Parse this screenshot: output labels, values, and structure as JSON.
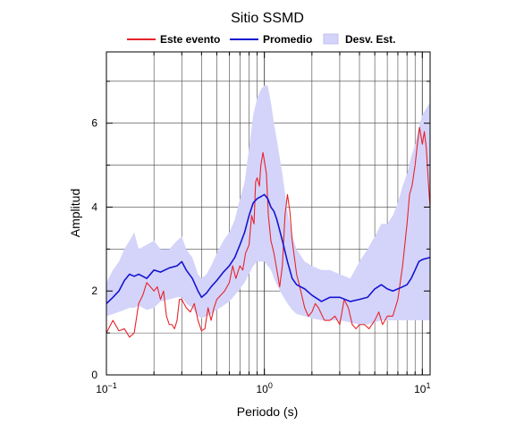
{
  "chart_data": {
    "type": "line",
    "title": "Sitio SSMD",
    "xlabel": "Periodo (s)",
    "ylabel": "Amplitud",
    "xscale": "log",
    "xlim": [
      0.1,
      11.2
    ],
    "ylim": [
      0,
      7.7
    ],
    "grid": true,
    "legend_position": "top-center",
    "xticks": [
      {
        "value": 0.1,
        "base": "10",
        "exp": "−1"
      },
      {
        "value": 1,
        "label": "10",
        "sup": "0"
      },
      {
        "value": 10,
        "label": "10",
        "sup": "1"
      }
    ],
    "yticks": [
      0,
      2,
      4,
      6
    ],
    "legend": [
      {
        "key": "event",
        "label": "Este evento"
      },
      {
        "key": "mean",
        "label": "Promedio"
      },
      {
        "key": "band",
        "label": "Desv. Est."
      }
    ],
    "colors": {
      "event": "#e8232a",
      "mean": "#1414d2",
      "band": "#d4d4fa",
      "band_edge": "#b8b8ee",
      "grid": "#444444"
    },
    "series": [
      {
        "key": "event",
        "name": "Este evento",
        "x": [
          0.1,
          0.11,
          0.12,
          0.13,
          0.14,
          0.15,
          0.16,
          0.17,
          0.18,
          0.19,
          0.2,
          0.21,
          0.22,
          0.23,
          0.24,
          0.25,
          0.26,
          0.27,
          0.28,
          0.29,
          0.3,
          0.32,
          0.34,
          0.36,
          0.38,
          0.4,
          0.42,
          0.44,
          0.46,
          0.48,
          0.5,
          0.53,
          0.56,
          0.6,
          0.63,
          0.66,
          0.7,
          0.73,
          0.76,
          0.8,
          0.83,
          0.86,
          0.88,
          0.9,
          0.93,
          0.95,
          0.98,
          1.0,
          1.03,
          1.06,
          1.1,
          1.15,
          1.2,
          1.25,
          1.3,
          1.35,
          1.4,
          1.45,
          1.5,
          1.6,
          1.7,
          1.8,
          1.9,
          2.0,
          2.1,
          2.2,
          2.4,
          2.6,
          2.8,
          3.0,
          3.2,
          3.4,
          3.6,
          3.8,
          4.0,
          4.3,
          4.6,
          5.0,
          5.3,
          5.6,
          6.0,
          6.5,
          7.0,
          7.5,
          8.0,
          8.3,
          8.6,
          9.0,
          9.3,
          9.6,
          10.0,
          10.3,
          10.6,
          11.0,
          11.2
        ],
        "y": [
          1.0,
          1.3,
          1.05,
          1.1,
          0.9,
          1.0,
          1.7,
          1.9,
          2.2,
          2.1,
          2.0,
          2.1,
          1.8,
          2.0,
          1.4,
          1.2,
          1.2,
          1.1,
          1.3,
          1.8,
          1.8,
          1.6,
          1.5,
          1.7,
          1.3,
          1.05,
          1.1,
          1.6,
          1.3,
          1.6,
          1.8,
          1.9,
          2.0,
          2.2,
          2.6,
          2.3,
          2.6,
          2.5,
          2.9,
          3.1,
          3.8,
          3.6,
          4.6,
          4.7,
          4.5,
          5.0,
          5.3,
          5.1,
          4.8,
          3.8,
          3.2,
          2.9,
          2.5,
          2.1,
          2.6,
          3.8,
          4.3,
          3.9,
          3.2,
          2.4,
          2.0,
          1.6,
          1.4,
          1.5,
          1.7,
          1.6,
          1.3,
          1.3,
          1.4,
          1.2,
          1.8,
          1.6,
          1.2,
          1.1,
          1.2,
          1.2,
          1.1,
          1.3,
          1.5,
          1.2,
          1.4,
          1.4,
          1.8,
          2.6,
          3.6,
          4.3,
          4.5,
          5.0,
          5.5,
          5.9,
          5.5,
          5.8,
          5.4,
          4.4,
          4.0
        ]
      },
      {
        "key": "mean",
        "name": "Promedio",
        "x": [
          0.1,
          0.11,
          0.12,
          0.13,
          0.14,
          0.15,
          0.16,
          0.17,
          0.18,
          0.2,
          0.22,
          0.25,
          0.28,
          0.3,
          0.32,
          0.35,
          0.38,
          0.4,
          0.43,
          0.46,
          0.5,
          0.55,
          0.6,
          0.65,
          0.7,
          0.75,
          0.8,
          0.85,
          0.9,
          0.95,
          1.0,
          1.05,
          1.1,
          1.15,
          1.2,
          1.3,
          1.4,
          1.5,
          1.6,
          1.8,
          2.0,
          2.3,
          2.6,
          3.0,
          3.5,
          4.0,
          4.5,
          5.0,
          5.5,
          6.0,
          6.5,
          7.0,
          7.5,
          8.0,
          8.5,
          9.0,
          9.5,
          10.0,
          11.2
        ],
        "y": [
          1.7,
          1.85,
          2.0,
          2.25,
          2.4,
          2.35,
          2.4,
          2.35,
          2.3,
          2.5,
          2.45,
          2.55,
          2.6,
          2.7,
          2.5,
          2.3,
          2.0,
          1.85,
          1.95,
          2.1,
          2.25,
          2.45,
          2.6,
          2.8,
          3.1,
          3.4,
          3.8,
          4.1,
          4.2,
          4.25,
          4.3,
          4.2,
          4.0,
          3.9,
          3.7,
          3.2,
          2.7,
          2.3,
          2.15,
          2.05,
          1.9,
          1.75,
          1.85,
          1.85,
          1.75,
          1.8,
          1.85,
          2.05,
          2.15,
          2.05,
          2.0,
          2.05,
          2.1,
          2.15,
          2.3,
          2.5,
          2.7,
          2.75,
          2.8
        ]
      },
      {
        "key": "band",
        "name": "Desv. Est.",
        "x": [
          0.1,
          0.11,
          0.12,
          0.13,
          0.14,
          0.15,
          0.16,
          0.18,
          0.2,
          0.22,
          0.25,
          0.28,
          0.3,
          0.32,
          0.35,
          0.38,
          0.4,
          0.43,
          0.46,
          0.5,
          0.55,
          0.6,
          0.65,
          0.7,
          0.75,
          0.8,
          0.85,
          0.9,
          0.95,
          1.0,
          1.05,
          1.1,
          1.15,
          1.2,
          1.3,
          1.4,
          1.5,
          1.6,
          1.8,
          2.0,
          2.3,
          2.6,
          3.0,
          3.5,
          4.0,
          4.5,
          5.0,
          5.5,
          6.0,
          6.5,
          7.0,
          7.5,
          8.0,
          8.5,
          9.0,
          9.5,
          10.0,
          11.2
        ],
        "upper": [
          2.2,
          2.5,
          2.7,
          3.0,
          3.2,
          3.4,
          3.0,
          3.1,
          3.2,
          3.0,
          3.0,
          3.2,
          3.3,
          3.0,
          2.8,
          2.4,
          2.3,
          2.4,
          2.6,
          2.9,
          3.2,
          3.4,
          3.7,
          4.2,
          4.6,
          5.4,
          6.2,
          6.6,
          6.8,
          6.9,
          6.9,
          6.5,
          6.0,
          5.6,
          4.8,
          3.9,
          3.3,
          3.0,
          2.7,
          2.6,
          2.5,
          2.5,
          2.4,
          2.3,
          2.7,
          3.0,
          3.3,
          3.6,
          3.6,
          3.8,
          4.1,
          4.5,
          4.8,
          5.2,
          5.5,
          5.9,
          6.2,
          6.5
        ],
        "lower": [
          1.4,
          1.45,
          1.5,
          1.55,
          1.6,
          1.6,
          1.65,
          1.55,
          1.6,
          1.75,
          1.8,
          1.85,
          1.85,
          1.7,
          1.6,
          1.4,
          1.35,
          1.4,
          1.45,
          1.55,
          1.65,
          1.75,
          1.9,
          2.05,
          2.2,
          2.4,
          2.6,
          2.7,
          2.7,
          2.7,
          2.6,
          2.5,
          2.3,
          2.15,
          1.9,
          1.7,
          1.55,
          1.45,
          1.4,
          1.35,
          1.3,
          1.3,
          1.3,
          1.25,
          1.2,
          1.2,
          1.25,
          1.3,
          1.3,
          1.3,
          1.3,
          1.3,
          1.3,
          1.3,
          1.3,
          1.3,
          1.3,
          1.3
        ]
      }
    ]
  }
}
